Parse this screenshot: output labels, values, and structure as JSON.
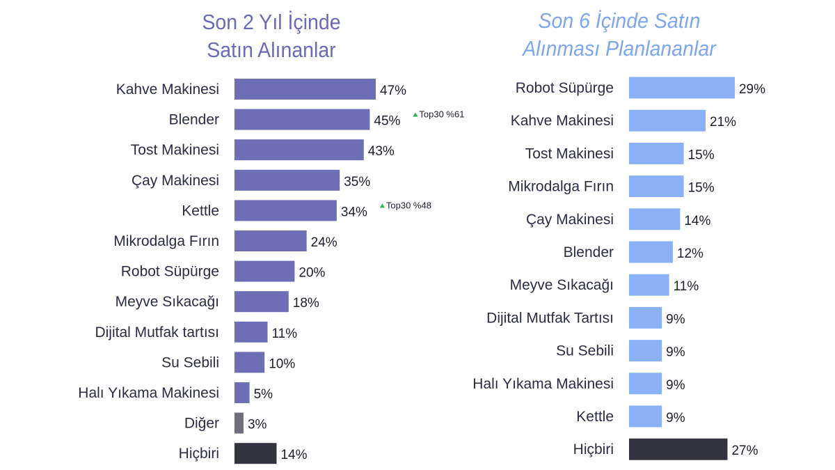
{
  "chart_data": [
    {
      "type": "bar",
      "orientation": "horizontal",
      "title_lines": [
        "Son 2 Yıl İçinde",
        "Satın Alınanlar"
      ],
      "title_color": "#6a6ab8",
      "bar_color": "#6e6eb6",
      "special_colors": {
        "Diğer": "#6e6e7e",
        "Hiçbiri": "#33323f"
      },
      "unit": "%",
      "categories": [
        "Kahve Makinesi",
        "Blender",
        "Tost Makinesi",
        "Çay Makinesi",
        "Kettle",
        "Mikrodalga Fırın",
        "Robot Süpürge",
        "Meyve Sıkacağı",
        "Dijital Mutfak tartısı",
        "Su Sebili",
        "Halı Yıkama Makinesi",
        "Diğer",
        "Hiçbiri"
      ],
      "values": [
        47,
        45,
        43,
        35,
        34,
        24,
        20,
        18,
        11,
        10,
        5,
        3,
        14
      ],
      "annotations": [
        {
          "category": "Blender",
          "text": "Top30 %61"
        },
        {
          "category": "Kettle",
          "text": "Top30 %48"
        }
      ]
    },
    {
      "type": "bar",
      "orientation": "horizontal",
      "title_lines": [
        "Son 6 İçinde Satın",
        "Alınması Planlananlar"
      ],
      "title_color": "#7da6ee",
      "bar_color": "#8bb0f5",
      "special_colors": {
        "Hiçbiri": "#33323f"
      },
      "unit": "%",
      "categories": [
        "Robot Süpürge",
        "Kahve Makinesi",
        "Tost Makinesi",
        "Mikrodalga Fırın",
        "Çay Makinesi",
        "Blender",
        "Meyve Sıkacağı",
        "Dijital Mutfak Tartısı",
        "Su Sebili",
        "Halı Yıkama Makinesi",
        "Kettle",
        "Hiçbiri"
      ],
      "values": [
        29,
        21,
        15,
        15,
        14,
        12,
        11,
        9,
        9,
        9,
        9,
        27
      ],
      "annotations": []
    }
  ]
}
